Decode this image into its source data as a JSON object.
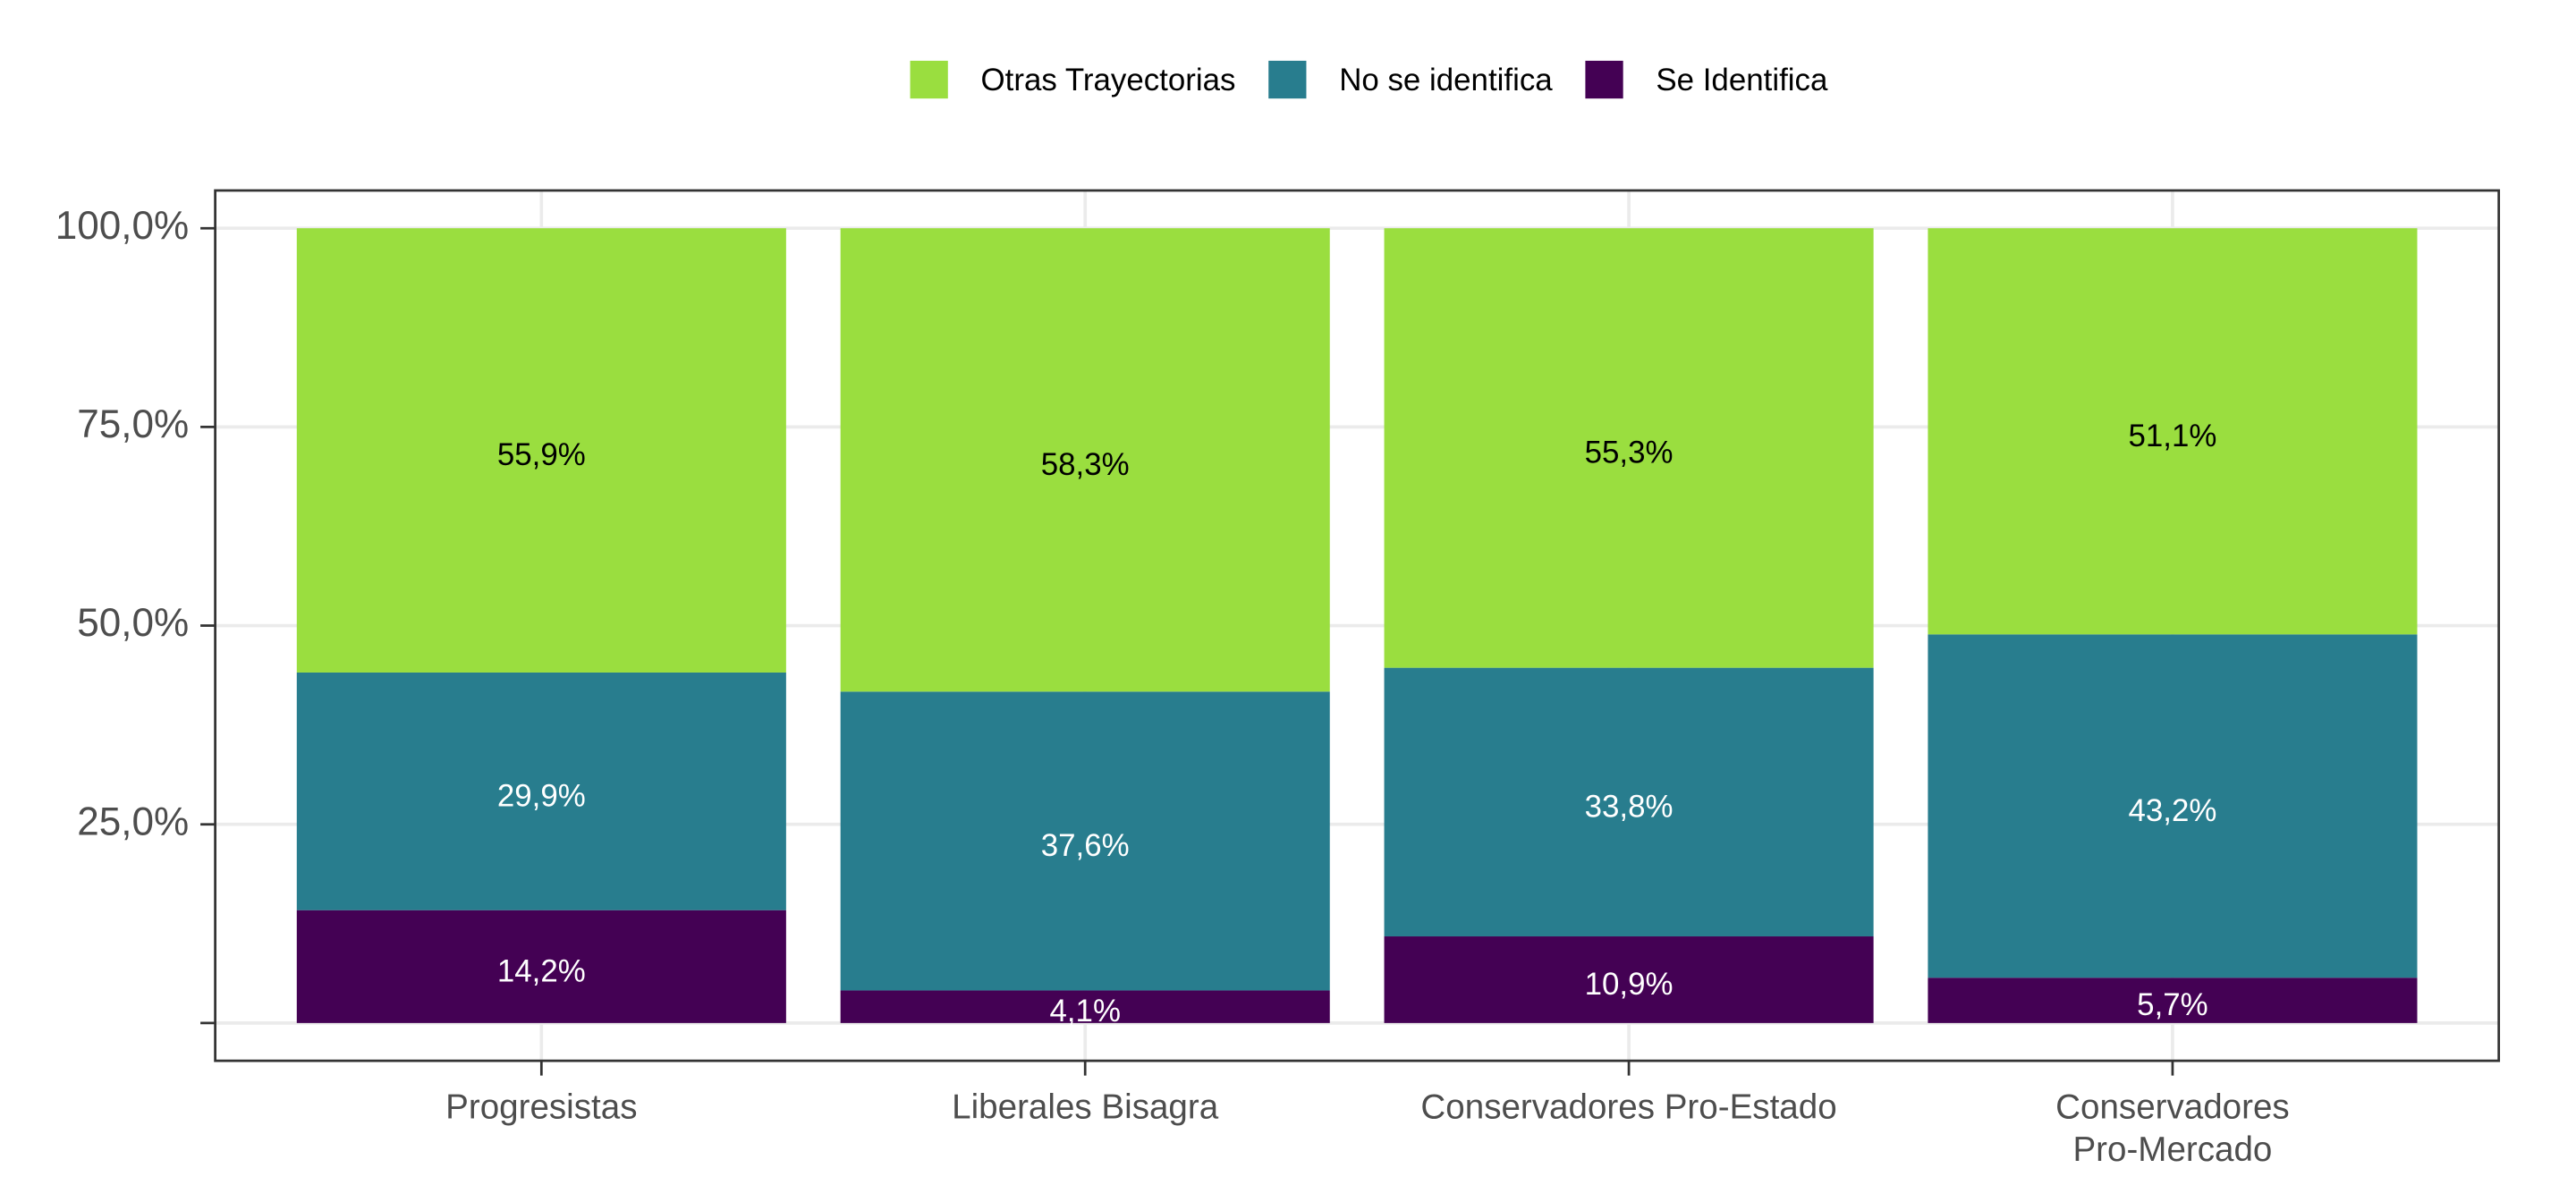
{
  "chart_data": {
    "type": "stacked-bar",
    "categories": [
      "Progresistas",
      "Liberales Bisagra",
      "Conservadores Pro-Estado",
      "Conservadores\nPro-Mercado"
    ],
    "series": [
      {
        "name": "Se Identifica",
        "color": "#440154",
        "values": [
          14.2,
          4.1,
          10.9,
          5.7
        ],
        "value_labels": [
          "14,2%",
          "4,1%",
          "10,9%",
          "5,7%"
        ]
      },
      {
        "name": "No se identifica",
        "color": "#287d8e",
        "values": [
          29.9,
          37.6,
          33.8,
          43.2
        ],
        "value_labels": [
          "29,9%",
          "37,6%",
          "33,8%",
          "43,2%"
        ]
      },
      {
        "name": "Otras Trayectorias",
        "color": "#9ade3f",
        "values": [
          55.9,
          58.3,
          55.3,
          51.1
        ],
        "value_labels": [
          "55,9%",
          "58,3%",
          "55,3%",
          "51,1%"
        ]
      }
    ],
    "ylim": [
      -4.75,
      104.75
    ],
    "yticks": [
      {
        "value": 0
      },
      {
        "value": 25,
        "label": "25,0%"
      },
      {
        "value": 50,
        "label": "50,0%"
      },
      {
        "value": 75,
        "label": "75,0%"
      },
      {
        "value": 100,
        "label": "100,0%"
      }
    ],
    "grid": true,
    "legend": "top"
  }
}
